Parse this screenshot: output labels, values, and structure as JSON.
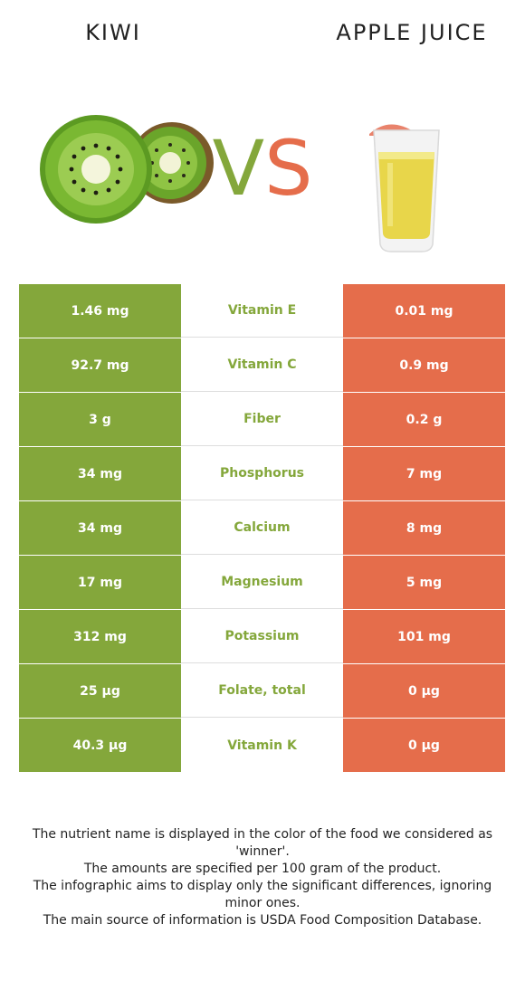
{
  "left_food": {
    "name": "kiwi",
    "color": "#84a73b"
  },
  "right_food": {
    "name": "apple juice",
    "color": "#e56d4b"
  },
  "vs": {
    "v": "V",
    "s": "S"
  },
  "rows": [
    {
      "left": "1.46 mg",
      "nutrient": "Vitamin E",
      "right": "0.01 mg"
    },
    {
      "left": "92.7 mg",
      "nutrient": "Vitamin C",
      "right": "0.9 mg"
    },
    {
      "left": "3 g",
      "nutrient": "Fiber",
      "right": "0.2 g"
    },
    {
      "left": "34 mg",
      "nutrient": "Phosphorus",
      "right": "7 mg"
    },
    {
      "left": "34 mg",
      "nutrient": "Calcium",
      "right": "8 mg"
    },
    {
      "left": "17 mg",
      "nutrient": "Magnesium",
      "right": "5 mg"
    },
    {
      "left": "312 mg",
      "nutrient": "Potassium",
      "right": "101 mg"
    },
    {
      "left": "25 µg",
      "nutrient": "Folate, total",
      "right": "0 µg"
    },
    {
      "left": "40.3 µg",
      "nutrient": "Vitamin K",
      "right": "0 µg"
    }
  ],
  "footer": {
    "line1": "The nutrient name is displayed in the color of the food we considered as 'winner'.",
    "line2": "The amounts are specified per 100 gram of the product.",
    "line3": "The infographic aims to display only the significant differences, ignoring minor ones.",
    "line4": "The main source of information is USDA Food Composition Database."
  }
}
